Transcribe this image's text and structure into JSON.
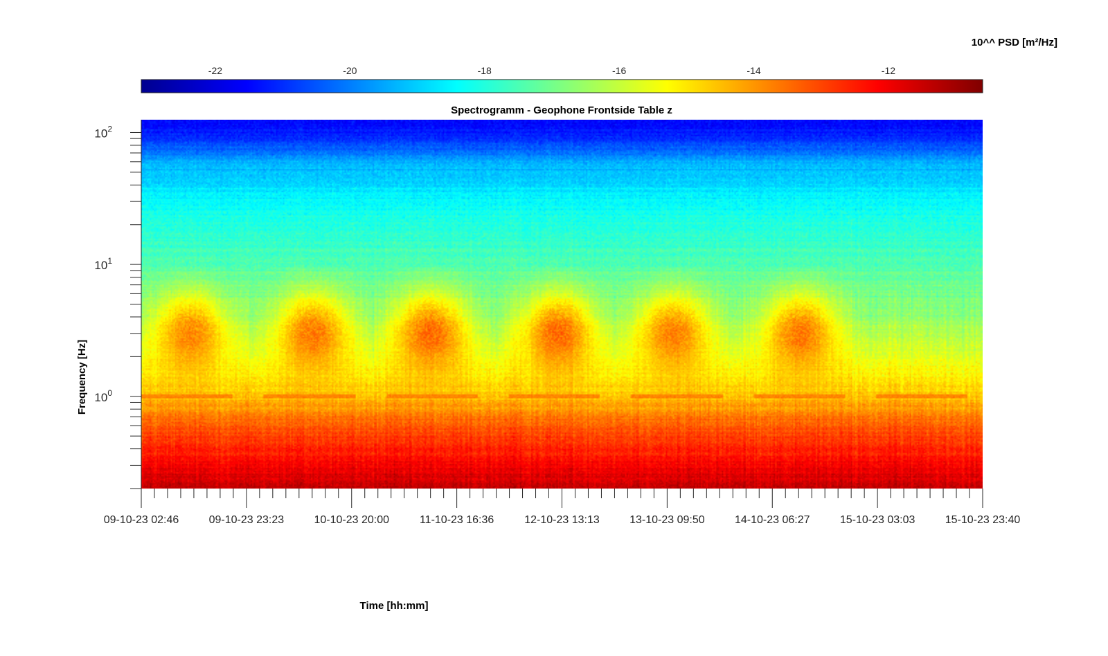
{
  "chart_data": {
    "type": "heatmap",
    "title": "Spectrogramm - Geophone Frontside Table z",
    "xlabel": "Time [hh:mm]",
    "ylabel": "Frequency [Hz]",
    "y_scale": "log",
    "ylim": [
      0.2,
      125
    ],
    "y_ticks": [
      {
        "value": 1,
        "base": "10",
        "exp": "0"
      },
      {
        "value": 10,
        "base": "10",
        "exp": "1"
      },
      {
        "value": 100,
        "base": "10",
        "exp": "2"
      }
    ],
    "x_ticks": [
      "09-10-23 02:46",
      "09-10-23 23:23",
      "10-10-23 20:00",
      "11-10-23 16:36",
      "12-10-23 13:13",
      "13-10-23 09:50",
      "14-10-23 06:27",
      "15-10-23 03:03",
      "15-10-23 23:40"
    ],
    "xlim": [
      "09-10-23 02:46",
      "15-10-23 23:40"
    ],
    "colorbar": {
      "label": "10^^ PSD [m²/Hz]",
      "range": [
        -23.1,
        -10.6
      ],
      "ticks": [
        "-22",
        "-20",
        "-18",
        "-16",
        "-14",
        "-12"
      ],
      "colormap": "jet",
      "location": "top"
    },
    "psd_profile_by_frequency": [
      {
        "frequency_hz": 0.2,
        "log10_psd": -11.4
      },
      {
        "frequency_hz": 0.3,
        "log10_psd": -12.1
      },
      {
        "frequency_hz": 0.5,
        "log10_psd": -12.9
      },
      {
        "frequency_hz": 0.7,
        "log10_psd": -13.6
      },
      {
        "frequency_hz": 1.0,
        "log10_psd": -14.6
      },
      {
        "frequency_hz": 2.0,
        "log10_psd": -15.6
      },
      {
        "frequency_hz": 4.0,
        "log10_psd": -16.6
      },
      {
        "frequency_hz": 10,
        "log10_psd": -17.4
      },
      {
        "frequency_hz": 30,
        "log10_psd": -18.4
      },
      {
        "frequency_hz": 60,
        "log10_psd": -19.5
      },
      {
        "frequency_hz": 90,
        "log10_psd": -21.0
      },
      {
        "frequency_hz": 125,
        "log10_psd": -21.5
      }
    ],
    "daytime_activity_bursts": [
      {
        "center_time": "09-10-23 12:30",
        "freq_hz": [
          1.5,
          6
        ],
        "peak_log10_psd": -13.4
      },
      {
        "center_time": "10-10-23 12:30",
        "freq_hz": [
          1.5,
          6
        ],
        "peak_log10_psd": -13.2
      },
      {
        "center_time": "11-10-23 11:30",
        "freq_hz": [
          1.5,
          6
        ],
        "peak_log10_psd": -13.0
      },
      {
        "center_time": "12-10-23 12:30",
        "freq_hz": [
          1.5,
          6
        ],
        "peak_log10_psd": -13.0
      },
      {
        "center_time": "13-10-23 11:00",
        "freq_hz": [
          1.5,
          6
        ],
        "peak_log10_psd": -13.3
      },
      {
        "center_time": "14-10-23 12:00",
        "freq_hz": [
          1.5,
          6
        ],
        "peak_log10_psd": -13.2
      }
    ],
    "line_at_1hz_log10_psd": -13.8
  }
}
